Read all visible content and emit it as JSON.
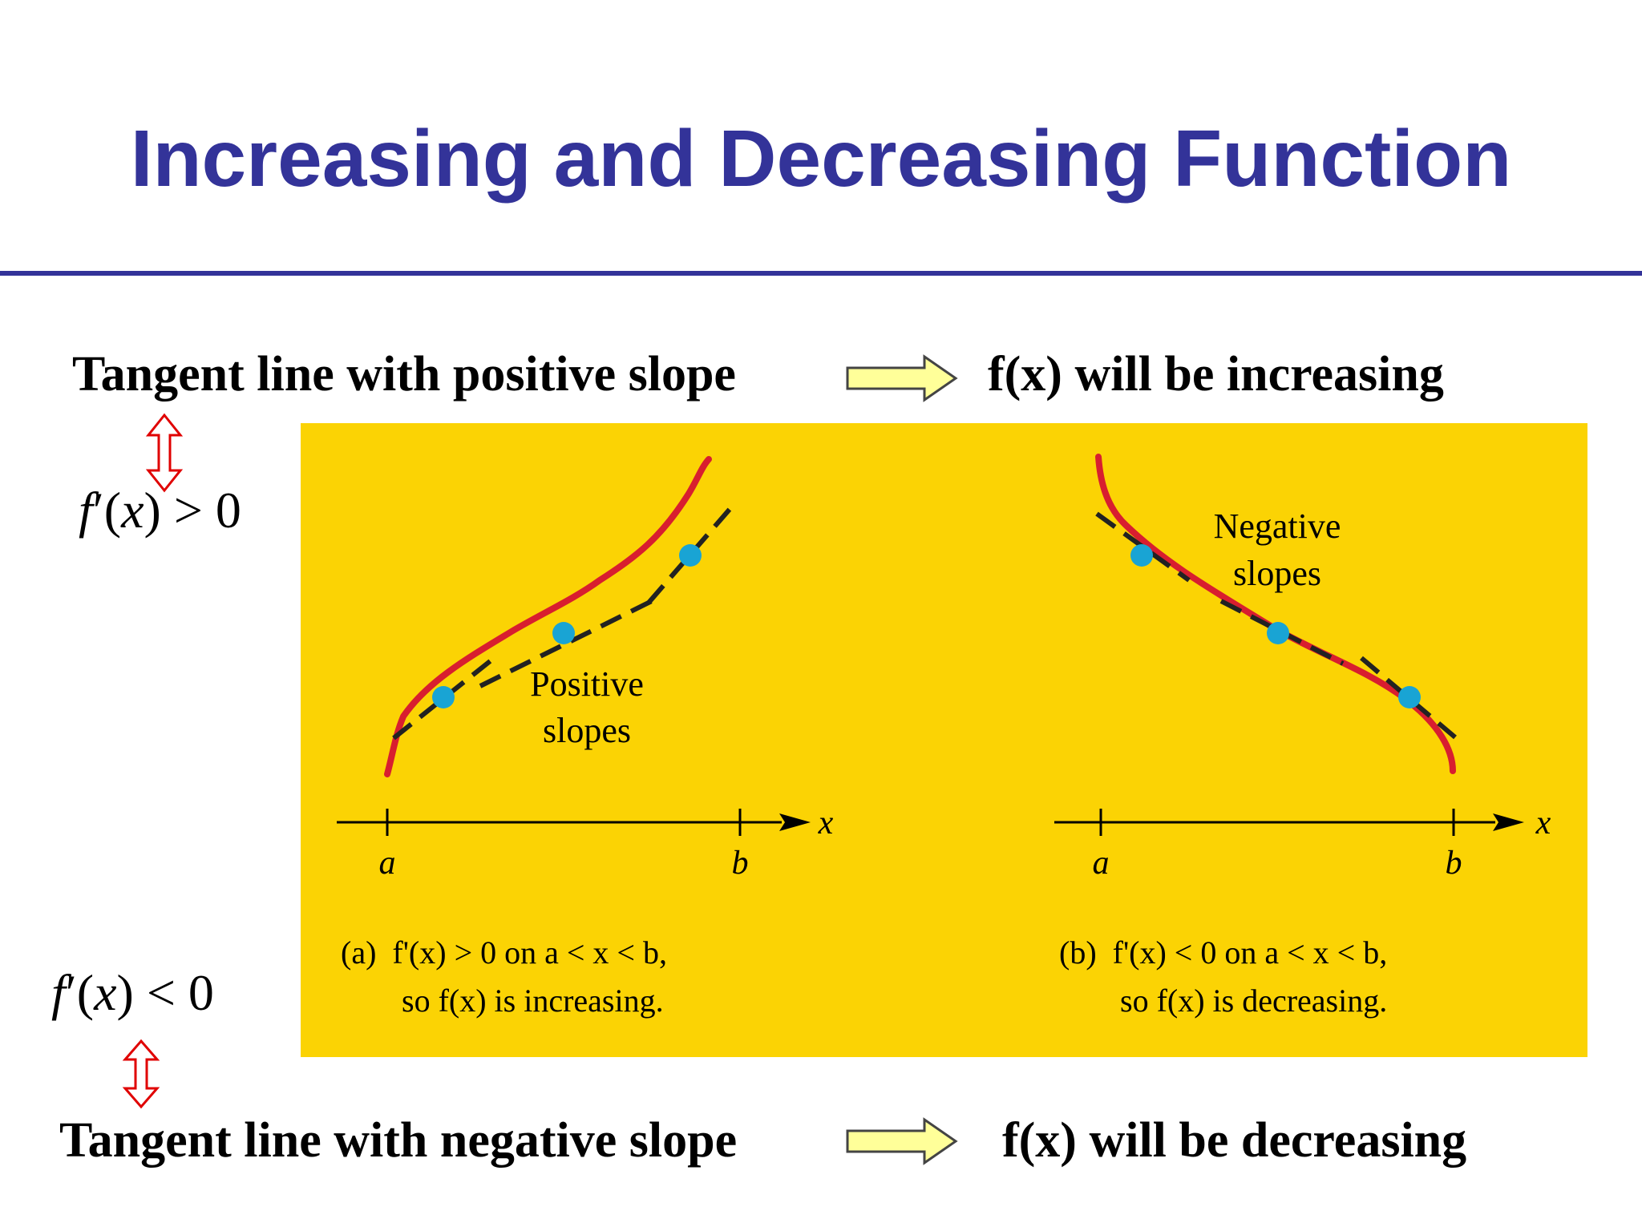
{
  "slide": {
    "title": "Increasing and Decreasing Function",
    "top_statement": {
      "left": "Tangent line with  positive slope",
      "right": "f(x) will be increasing"
    },
    "bottom_statement": {
      "left": "Tangent line with  negative slope",
      "right": "f(x) will be decreasing"
    },
    "condition_positive": {
      "fn": "f",
      "prime": "′",
      "open": "(",
      "var": "x",
      "close": ")",
      "rel": " > 0"
    },
    "condition_negative": {
      "fn": "f",
      "prime": "′",
      "open": "(",
      "var": "x",
      "close": ")",
      "rel": " < 0"
    }
  },
  "figure": {
    "panel_a": {
      "annotation_line1": "Positive",
      "annotation_line2": "slopes",
      "axis_var": "x",
      "tick_a": "a",
      "tick_b": "b",
      "caption_line1": "(a)  f'(x) > 0 on a < x < b,",
      "caption_line2": "so f(x) is increasing."
    },
    "panel_b": {
      "annotation_line1": "Negative",
      "annotation_line2": "slopes",
      "axis_var": "x",
      "tick_a": "a",
      "tick_b": "b",
      "caption_line1": "(b)  f'(x) < 0 on a < x < b,",
      "caption_line2": "so f(x) is decreasing."
    }
  },
  "colors": {
    "title": "#333399",
    "panel_background": "#fbd304",
    "curve": "#d81e2f",
    "tangent": "#222222",
    "point": "#19a4d4",
    "double_arrow": "#e00000",
    "block_arrow_fill": "#ffff99"
  },
  "icons": [
    "right-block-arrow-icon",
    "vertical-double-arrow-icon"
  ]
}
